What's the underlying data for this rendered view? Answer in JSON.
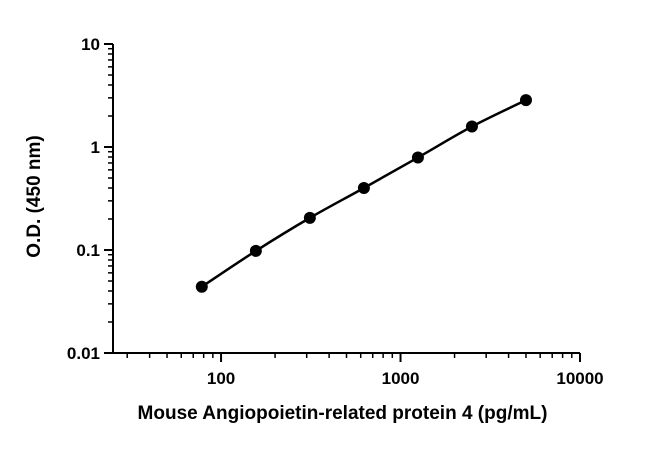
{
  "chart_data": {
    "type": "scatter",
    "title": "",
    "xlabel": "Mouse Angiopoietin-related protein 4 (pg/mL)",
    "ylabel": "O.D. (450 nm)",
    "x_scale": "log",
    "y_scale": "log",
    "xlim": [
      25,
      10000
    ],
    "ylim": [
      0.01,
      10
    ],
    "x_ticks": [
      100,
      1000,
      10000
    ],
    "x_tick_labels": [
      "100",
      "1000",
      "10000"
    ],
    "y_ticks": [
      0.01,
      0.1,
      1,
      10
    ],
    "y_tick_labels": [
      "0.01",
      "0.1",
      "1",
      "10"
    ],
    "grid": false,
    "legend": "none",
    "series": [
      {
        "x": [
          78.1,
          156.3,
          312.5,
          625,
          1250,
          2500,
          5000
        ],
        "y": [
          0.044,
          0.098,
          0.205,
          0.4,
          0.79,
          1.58,
          2.85
        ],
        "color": "#000000",
        "fit_line": true
      }
    ]
  }
}
